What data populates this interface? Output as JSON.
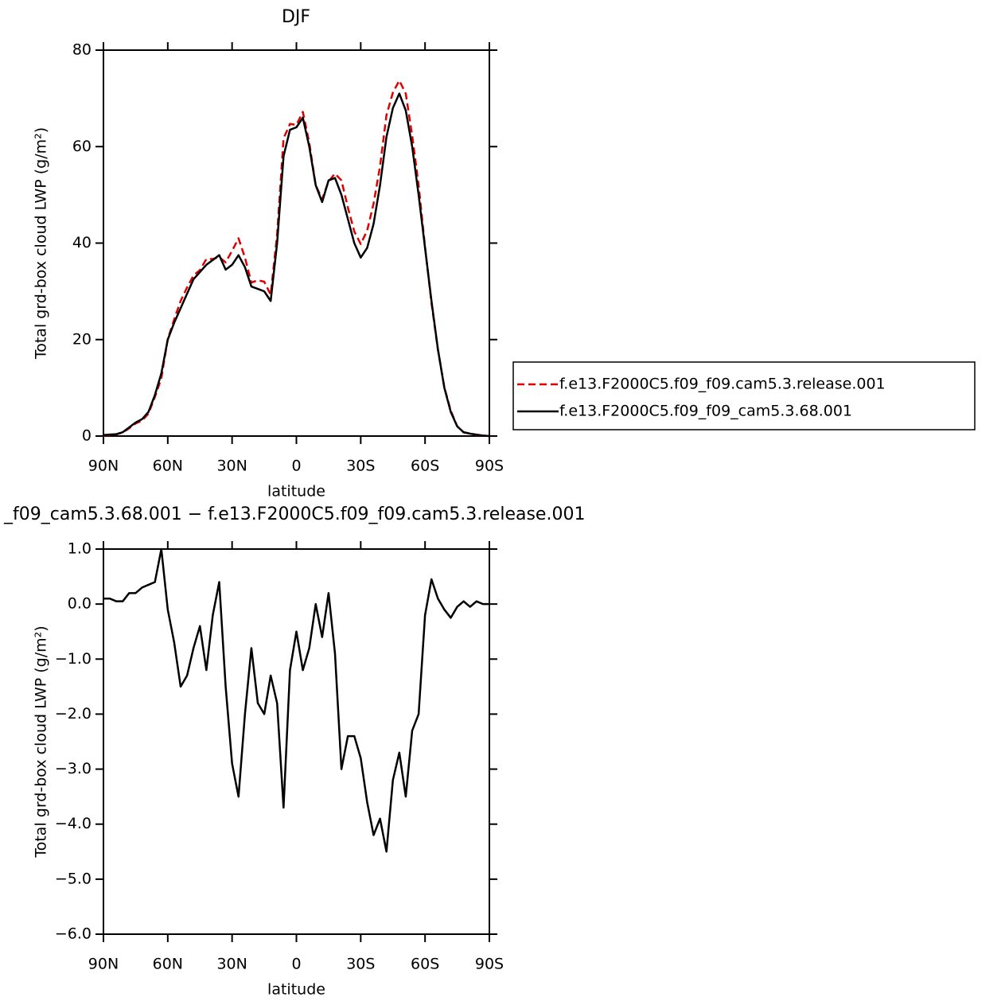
{
  "chart_data": [
    {
      "type": "line",
      "title": "DJF",
      "xlabel": "latitude",
      "ylabel": "Total grd-box cloud LWP (g/m²)",
      "x": [
        90,
        87,
        84,
        81,
        78,
        75,
        72,
        69,
        66,
        63,
        60,
        57,
        54,
        51,
        48,
        45,
        42,
        39,
        36,
        33,
        30,
        27,
        24,
        21,
        18,
        15,
        12,
        9,
        6,
        3,
        0,
        -3,
        -6,
        -9,
        -12,
        -15,
        -18,
        -21,
        -24,
        -27,
        -30,
        -33,
        -36,
        -39,
        -42,
        -45,
        -48,
        -51,
        -54,
        -57,
        -60,
        -63,
        -66,
        -69,
        -72,
        -75,
        -78,
        -81,
        -84,
        -87,
        -90
      ],
      "xlim": [
        90,
        -90
      ],
      "xticks": [
        {
          "value": 90,
          "label": "90N"
        },
        {
          "value": 60,
          "label": "60N"
        },
        {
          "value": 30,
          "label": "30N"
        },
        0,
        {
          "value": -30,
          "label": "30S"
        },
        {
          "value": -60,
          "label": "60S"
        },
        {
          "value": -90,
          "label": "90S"
        }
      ],
      "ylim": [
        0,
        80
      ],
      "yticks": [
        0,
        20,
        40,
        60,
        80
      ],
      "legend": "right",
      "series": [
        {
          "name": "f.e13.F2000C5.f09_f09.cam5.3.release.001",
          "color": "#e00000",
          "style": "dashed",
          "values": [
            0.1,
            0.2,
            0.35,
            0.75,
            1.6,
            2.6,
            3.2,
            4.65,
            8.1,
            12,
            20.1,
            24.2,
            28,
            30.8,
            33.3,
            34.4,
            36.7,
            36.7,
            37.1,
            36,
            38.4,
            41,
            37,
            31.8,
            32.3,
            32,
            29.3,
            41.8,
            61.7,
            64.7,
            64.5,
            67.2,
            60.8,
            52,
            49.1,
            52.8,
            54.4,
            53,
            47.4,
            42.4,
            39.8,
            42.6,
            48.2,
            55.9,
            66.5,
            71.2,
            73.7,
            71,
            62.3,
            52,
            39.2,
            27.55,
            17.9,
            10.1,
            5.25,
            2.05,
            0.75,
            0.55,
            0.25,
            0.1,
            0
          ]
        },
        {
          "name": "f.e13.F2000C5.f09_f09_cam5.3.68.001",
          "color": "#000000",
          "style": "solid",
          "values": [
            0.2,
            0.3,
            0.4,
            0.8,
            1.8,
            2.8,
            3.5,
            5,
            8.5,
            13,
            20,
            23.5,
            26.5,
            29.5,
            32.5,
            34,
            35.5,
            36.5,
            37.5,
            34.5,
            35.5,
            37.5,
            35,
            31,
            30.5,
            30,
            28,
            40,
            58,
            63.5,
            64,
            66,
            60,
            52,
            48.5,
            53,
            53.5,
            50,
            45,
            40,
            37,
            39,
            44,
            52,
            62,
            68,
            71,
            67.5,
            60,
            50,
            39,
            28,
            18,
            10,
            5,
            2,
            0.8,
            0.5,
            0.3,
            0.1,
            0
          ]
        }
      ]
    },
    {
      "type": "line",
      "title": "_f09_cam5.3.68.001 − f.e13.F2000C5.f09_f09.cam5.3.release.001",
      "xlabel": "latitude",
      "ylabel": "Total grd-box cloud LWP (g/m²)",
      "x": [
        90,
        87,
        84,
        81,
        78,
        75,
        72,
        69,
        66,
        63,
        60,
        57,
        54,
        51,
        48,
        45,
        42,
        39,
        36,
        33,
        30,
        27,
        24,
        21,
        18,
        15,
        12,
        9,
        6,
        3,
        0,
        -3,
        -6,
        -9,
        -12,
        -15,
        -18,
        -21,
        -24,
        -27,
        -30,
        -33,
        -36,
        -39,
        -42,
        -45,
        -48,
        -51,
        -54,
        -57,
        -60,
        -63,
        -66,
        -69,
        -72,
        -75,
        -78,
        -81,
        -84,
        -87,
        -90
      ],
      "xlim": [
        90,
        -90
      ],
      "xticks": [
        {
          "value": 90,
          "label": "90N"
        },
        {
          "value": 60,
          "label": "60N"
        },
        {
          "value": 30,
          "label": "30N"
        },
        0,
        {
          "value": -30,
          "label": "30S"
        },
        {
          "value": -60,
          "label": "60S"
        },
        {
          "value": -90,
          "label": "90S"
        }
      ],
      "ylim": [
        -6,
        1
      ],
      "yticks": [
        {
          "value": 1,
          "label": "1.0"
        },
        {
          "value": 0,
          "label": "0.0"
        },
        {
          "value": -1,
          "label": "−1.0"
        },
        {
          "value": -2,
          "label": "−2.0"
        },
        {
          "value": -3,
          "label": "−3.0"
        },
        {
          "value": -4,
          "label": "−4.0"
        },
        {
          "value": -5,
          "label": "−5.0"
        },
        {
          "value": -6,
          "label": "−6.0"
        }
      ],
      "series": [
        {
          "color": "#000000",
          "style": "solid",
          "values": [
            0.1,
            0.1,
            0.05,
            0.05,
            0.2,
            0.2,
            0.3,
            0.35,
            0.4,
            1,
            -0.1,
            -0.7,
            -1.5,
            -1.3,
            -0.8,
            -0.4,
            -1.2,
            -0.2,
            0.4,
            -1.5,
            -2.9,
            -3.5,
            -2,
            -0.8,
            -1.8,
            -2,
            -1.3,
            -1.8,
            -3.7,
            -1.2,
            -0.5,
            -1.2,
            -0.8,
            0,
            -0.6,
            0.2,
            -0.9,
            -3,
            -2.4,
            -2.4,
            -2.8,
            -3.6,
            -4.2,
            -3.9,
            -4.5,
            -3.2,
            -2.7,
            -3.5,
            -2.3,
            -2,
            -0.2,
            0.45,
            0.1,
            -0.1,
            -0.25,
            -0.05,
            0.05,
            -0.05,
            0.05,
            0,
            0
          ]
        }
      ]
    }
  ]
}
